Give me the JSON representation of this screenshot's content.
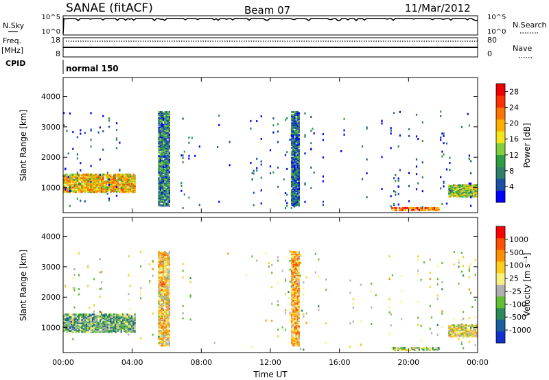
{
  "header": {
    "station": "SANAE (fitACF)",
    "beam": "Beam 07",
    "date": "11/Mar/2012"
  },
  "panels": {
    "nsky_label": "N.Sky",
    "nsky_ticks": [
      "10^5",
      "10^0"
    ],
    "nsearch_label": "N.Search",
    "nsearch_ticks": [
      "10^5",
      "10^0"
    ],
    "freq_label": "Freq.",
    "freq_unit": "[MHz]",
    "freq_ticks": [
      "18",
      "8"
    ],
    "nave_label": "Nave",
    "nave_ticks": [
      "80",
      "0"
    ],
    "cpid_label": "CPID",
    "cpid_value": "normal 150"
  },
  "colors": {
    "power": [
      "#0000ff",
      "#1d4fa8",
      "#2f7f6a",
      "#2e9e42",
      "#7fd03a",
      "#f5e41a",
      "#ffb000",
      "#ff7400",
      "#ff3000",
      "#ee0000"
    ],
    "velocity": [
      "#1030d0",
      "#1a5fa0",
      "#2b8a5a",
      "#60c030",
      "#b0b0b0",
      "#f8f080",
      "#ffcc20",
      "#ff9000",
      "#ff5000",
      "#ff0000"
    ]
  },
  "chart_data": [
    {
      "type": "heatmap",
      "quantity": "power",
      "ylabel": "Slant Range [km]",
      "xlabel": "",
      "ylim": [
        180,
        4620
      ],
      "yticks": [
        "1000",
        "2000",
        "3000",
        "4000"
      ],
      "xticks": [
        "00:00",
        "04:00",
        "08:00",
        "12:00",
        "16:00",
        "20:00",
        "00:00"
      ],
      "xlim_hours": [
        0,
        24
      ],
      "colorbar_label": "Power [dB]",
      "colorbar_ticks": [
        "28",
        "24",
        "20",
        "16",
        "12",
        "8",
        "4"
      ],
      "colorbar_range": [
        0,
        30
      ],
      "regions": [
        {
          "t": [
            0.0,
            4.2
          ],
          "range_km": [
            850,
            1450
          ],
          "value": 18,
          "density": "dense"
        },
        {
          "t": [
            5.5,
            6.2
          ],
          "range_km": [
            400,
            3500
          ],
          "value": 8,
          "density": "dense"
        },
        {
          "t": [
            13.2,
            13.7
          ],
          "range_km": [
            400,
            3500
          ],
          "value": 6,
          "density": "dense"
        },
        {
          "t": [
            19.0,
            21.8
          ],
          "range_km": [
            250,
            350
          ],
          "value": 22,
          "density": "dense"
        },
        {
          "t": [
            22.3,
            24.0
          ],
          "range_km": [
            700,
            1100
          ],
          "value": 14,
          "density": "dense"
        },
        {
          "t": [
            0.0,
            24.0
          ],
          "range_km": [
            250,
            3500
          ],
          "value": 4,
          "density": "sparse"
        }
      ]
    },
    {
      "type": "heatmap",
      "quantity": "velocity",
      "ylabel": "Slant Range [km]",
      "xlabel": "Time UT",
      "ylim": [
        180,
        4620
      ],
      "yticks": [
        "1000",
        "2000",
        "3000",
        "4000"
      ],
      "xticks": [
        "00:00",
        "04:00",
        "08:00",
        "12:00",
        "16:00",
        "20:00",
        "00:00"
      ],
      "xlim_hours": [
        0,
        24
      ],
      "colorbar_label": "Velocity [m s⁻¹]",
      "colorbar_ticks": [
        "1000",
        "500",
        "100",
        "25",
        "-25",
        "-100",
        "-500",
        "-1000"
      ],
      "colorbar_range": [
        -1000,
        1000
      ],
      "regions": [
        {
          "t": [
            0.0,
            4.2
          ],
          "range_km": [
            850,
            1450
          ],
          "value": -300,
          "density": "dense"
        },
        {
          "t": [
            5.5,
            6.2
          ],
          "range_km": [
            400,
            3500
          ],
          "value": 200,
          "density": "dense"
        },
        {
          "t": [
            13.2,
            13.7
          ],
          "range_km": [
            400,
            3500
          ],
          "value": 300,
          "density": "dense"
        },
        {
          "t": [
            19.0,
            21.8
          ],
          "range_km": [
            250,
            350
          ],
          "value": -150,
          "density": "dense"
        },
        {
          "t": [
            22.3,
            24.0
          ],
          "range_km": [
            700,
            1100
          ],
          "value": 100,
          "density": "dense"
        },
        {
          "t": [
            0.0,
            24.0
          ],
          "range_km": [
            250,
            3500
          ],
          "value": 0,
          "density": "sparse"
        }
      ]
    }
  ]
}
